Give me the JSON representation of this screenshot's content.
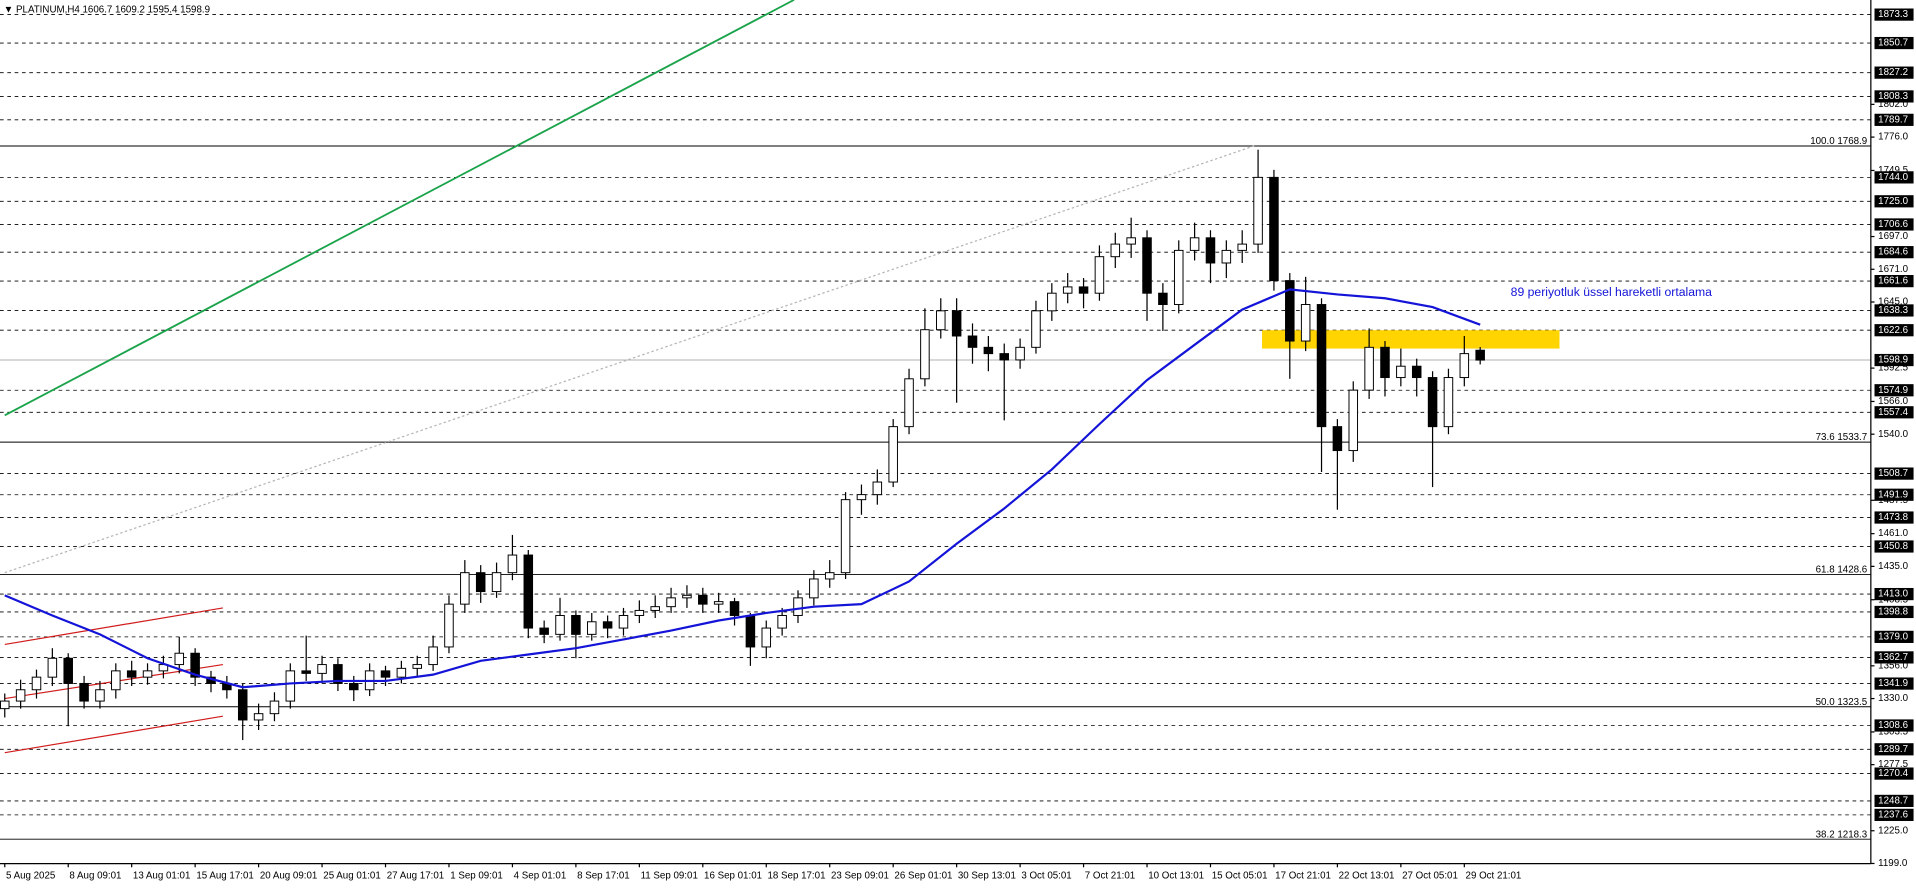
{
  "chart_data": {
    "type": "candlestick",
    "symbol": "PLATINUM,H4",
    "header": [
      1606.7,
      1609.2,
      1595.4,
      1598.9
    ],
    "xlim": [
      -1.2,
      470.5
    ],
    "ylim": [
      1198.9,
      1884.9
    ],
    "x": [
      0,
      4,
      8,
      12,
      16,
      20,
      24,
      28,
      32,
      36,
      40,
      44,
      48,
      52,
      56,
      60,
      64,
      68,
      72,
      76,
      80,
      84,
      88,
      92,
      96,
      100,
      104,
      108,
      112,
      116,
      120,
      124,
      128,
      132,
      136,
      140,
      144,
      148,
      152,
      156,
      160,
      164,
      168,
      172,
      176,
      180,
      184,
      188,
      192,
      196,
      200,
      204,
      208,
      212,
      216,
      220,
      224,
      228,
      232,
      236,
      240,
      244,
      248,
      252,
      256,
      260,
      264,
      268,
      272,
      276,
      280,
      284,
      288,
      292,
      296,
      300,
      304,
      308,
      312,
      316,
      320,
      324,
      328,
      332,
      336,
      340,
      344,
      348,
      352,
      356,
      360,
      364,
      368,
      372
    ],
    "open": [
      1322,
      1328,
      1337,
      1347,
      1362,
      1342,
      1328,
      1337,
      1352,
      1347,
      1352,
      1357,
      1366,
      1347,
      1342,
      1337,
      1313,
      1318,
      1328,
      1352,
      1350,
      1357,
      1342,
      1337,
      1352,
      1347,
      1354,
      1357,
      1371,
      1405,
      1430,
      1415,
      1430,
      1444,
      1386,
      1381,
      1396,
      1381,
      1391,
      1386,
      1396,
      1400,
      1403,
      1410,
      1412,
      1405,
      1407,
      1396,
      1371,
      1386,
      1396,
      1410,
      1425,
      1430,
      1488,
      1492,
      1502,
      1546,
      1584,
      1623,
      1638,
      1618,
      1609,
      1604,
      1599,
      1609,
      1638,
      1652,
      1657,
      1652,
      1681,
      1691,
      1696,
      1652,
      1643,
      1686,
      1696,
      1676,
      1686,
      1691,
      1744,
      1662,
      1614,
      1643,
      1546,
      1527,
      1575,
      1609,
      1585,
      1594,
      1585,
      1546,
      1585,
      1606.7
    ],
    "high": [
      1334,
      1345,
      1353,
      1370,
      1366,
      1348,
      1344,
      1358,
      1360,
      1358,
      1364,
      1379,
      1370,
      1352,
      1348,
      1342,
      1326,
      1335,
      1358,
      1380,
      1364,
      1362,
      1348,
      1358,
      1356,
      1360,
      1364,
      1380,
      1412,
      1440,
      1436,
      1438,
      1460,
      1448,
      1392,
      1410,
      1400,
      1398,
      1396,
      1402,
      1408,
      1412,
      1418,
      1420,
      1418,
      1414,
      1410,
      1398,
      1392,
      1402,
      1416,
      1432,
      1440,
      1494,
      1500,
      1512,
      1552,
      1592,
      1640,
      1648,
      1648,
      1628,
      1618,
      1612,
      1616,
      1646,
      1660,
      1668,
      1664,
      1690,
      1700,
      1712,
      1702,
      1660,
      1694,
      1708,
      1702,
      1694,
      1702,
      1766,
      1750,
      1668,
      1665,
      1648,
      1552,
      1582,
      1624,
      1614,
      1608,
      1600,
      1590,
      1592,
      1618,
      1609.2
    ],
    "low": [
      1315,
      1322,
      1330,
      1340,
      1308,
      1322,
      1322,
      1330,
      1340,
      1341,
      1346,
      1350,
      1340,
      1335,
      1330,
      1297,
      1305,
      1312,
      1322,
      1344,
      1342,
      1336,
      1328,
      1332,
      1340,
      1342,
      1348,
      1352,
      1366,
      1398,
      1406,
      1410,
      1424,
      1378,
      1374,
      1376,
      1362,
      1376,
      1378,
      1380,
      1390,
      1394,
      1398,
      1402,
      1398,
      1398,
      1388,
      1356,
      1362,
      1380,
      1390,
      1404,
      1418,
      1425,
      1476,
      1484,
      1498,
      1540,
      1578,
      1616,
      1565,
      1596,
      1590,
      1551,
      1592,
      1604,
      1630,
      1644,
      1640,
      1646,
      1672,
      1680,
      1630,
      1622,
      1636,
      1678,
      1660,
      1664,
      1676,
      1684,
      1654,
      1584,
      1606,
      1510,
      1480,
      1518,
      1568,
      1570,
      1578,
      1570,
      1498,
      1540,
      1578,
      1595.4
    ],
    "close": [
      1328,
      1337,
      1347,
      1362,
      1342,
      1328,
      1337,
      1352,
      1347,
      1352,
      1357,
      1366,
      1347,
      1342,
      1337,
      1313,
      1318,
      1328,
      1352,
      1350,
      1357,
      1342,
      1337,
      1352,
      1347,
      1354,
      1357,
      1371,
      1405,
      1430,
      1415,
      1430,
      1444,
      1386,
      1381,
      1396,
      1381,
      1391,
      1386,
      1396,
      1400,
      1403,
      1410,
      1412,
      1405,
      1407,
      1396,
      1371,
      1386,
      1396,
      1410,
      1425,
      1430,
      1488,
      1492,
      1502,
      1546,
      1584,
      1623,
      1638,
      1618,
      1609,
      1604,
      1599,
      1609,
      1638,
      1652,
      1657,
      1652,
      1681,
      1691,
      1696,
      1652,
      1643,
      1686,
      1696,
      1676,
      1686,
      1691,
      1744,
      1662,
      1614,
      1643,
      1546,
      1527,
      1575,
      1609,
      1585,
      1594,
      1585,
      1546,
      1585,
      1604,
      1598.9
    ],
    "up_color": "#ffffff",
    "down_color": "#000000",
    "xticks": [
      {
        "value": 0,
        "label": "5 Aug 2025"
      },
      {
        "value": 16,
        "label": "8 Aug 09:01"
      },
      {
        "value": 32,
        "label": "13 Aug 01:01"
      },
      {
        "value": 48,
        "label": "15 Aug 17:01"
      },
      {
        "value": 64,
        "label": "20 Aug 09:01"
      },
      {
        "value": 80,
        "label": "25 Aug 01:01"
      },
      {
        "value": 96,
        "label": "27 Aug 17:01"
      },
      {
        "value": 112,
        "label": "1 Sep 09:01"
      },
      {
        "value": 128,
        "label": "4 Sep 01:01"
      },
      {
        "value": 144,
        "label": "8 Sep 17:01"
      },
      {
        "value": 160,
        "label": "11 Sep 09:01"
      },
      {
        "value": 176,
        "label": "16 Sep 01:01"
      },
      {
        "value": 192,
        "label": "18 Sep 17:01"
      },
      {
        "value": 208,
        "label": "23 Sep 09:01"
      },
      {
        "value": 224,
        "label": "26 Sep 01:01"
      },
      {
        "value": 240,
        "label": "30 Sep 13:01"
      },
      {
        "value": 256,
        "label": "3 Oct 05:01"
      },
      {
        "value": 272,
        "label": "7 Oct 21:01"
      },
      {
        "value": 288,
        "label": "10 Oct 13:01"
      },
      {
        "value": 304,
        "label": "15 Oct 05:01"
      },
      {
        "value": 320,
        "label": "17 Oct 21:01"
      },
      {
        "value": 336,
        "label": "22 Oct 13:01"
      },
      {
        "value": 352,
        "label": "27 Oct 05:01"
      },
      {
        "value": 368,
        "label": "29 Oct 21:01"
      }
    ],
    "yticks": [
      {
        "value": 1802,
        "label": "1802.0"
      },
      {
        "value": 1776,
        "label": "1776.0"
      },
      1749.5,
      {
        "value": 1697,
        "label": "1697.0"
      },
      {
        "value": 1671,
        "label": "1671.0"
      },
      {
        "value": 1645,
        "label": "1645.0"
      },
      1592.5,
      {
        "value": 1566,
        "label": "1566.0"
      },
      {
        "value": 1540,
        "label": "1540.0"
      },
      1487.5,
      {
        "value": 1461,
        "label": "1461.0"
      },
      {
        "value": 1435,
        "label": "1435.0"
      },
      1408.5,
      {
        "value": 1356,
        "label": "1356.0"
      },
      {
        "value": 1330,
        "label": "1330.0"
      },
      1303.5,
      1277.5,
      {
        "value": 1225,
        "label": "1225.0"
      },
      {
        "value": 1199,
        "label": "1199.0"
      }
    ],
    "levels": [
      1873.3,
      1850.7,
      1827.2,
      1808.3,
      1789.7,
      {
        "value": 1744,
        "label": "1744.0"
      },
      {
        "value": 1725,
        "label": "1725.0"
      },
      1706.6,
      1684.6,
      1661.6,
      1638.3,
      1622.6,
      1598.9,
      1574.9,
      1557.4,
      1508.7,
      1491.9,
      1473.8,
      1450.8,
      {
        "value": 1413,
        "label": "1413.0"
      },
      1398.8,
      {
        "value": 1379,
        "label": "1379.0"
      },
      1362.7,
      1341.9,
      1308.6,
      1289.7,
      1270.4,
      1248.7,
      1237.6
    ],
    "price_line": 1598.9,
    "fib": [
      {
        "level": "100.0",
        "value": 1768.9
      },
      {
        "level": "73.6",
        "value": 1533.7
      },
      {
        "level": "61.8",
        "value": 1428.6
      },
      {
        "level": "50.0",
        "value": 1323.5
      },
      {
        "level": "38.2",
        "value": 1218.3
      }
    ],
    "ma": {
      "name": "89 periyotluk üssel hareketli ortalama",
      "color": "#1414d8",
      "x": [
        0,
        12,
        24,
        36,
        48,
        60,
        72,
        84,
        96,
        108,
        120,
        132,
        144,
        156,
        168,
        180,
        192,
        204,
        216,
        228,
        240,
        252,
        264,
        276,
        288,
        300,
        312,
        324,
        336,
        348,
        360,
        372
      ],
      "values": [
        1412,
        1396,
        1381,
        1362,
        1349,
        1339,
        1342,
        1344,
        1344,
        1349,
        1360,
        1365,
        1370,
        1377,
        1384,
        1392,
        1398,
        1403,
        1405,
        1423,
        1453,
        1481,
        1512,
        1548,
        1583,
        1611,
        1639,
        1655,
        1651,
        1648,
        1641,
        1627
      ]
    },
    "trendlines": [
      {
        "color": "#1aa34a",
        "x": [
          0,
          199
        ],
        "values": [
          1555,
          1885
        ]
      },
      {
        "color": "#d01c1c",
        "x": [
          0,
          55
        ],
        "values": [
          1373,
          1402
        ]
      },
      {
        "color": "#d01c1c",
        "x": [
          0,
          55
        ],
        "values": [
          1330,
          1357
        ]
      },
      {
        "color": "#d01c1c",
        "x": [
          0,
          55
        ],
        "values": [
          1287,
          1316
        ]
      },
      {
        "color": "#b4b4b4",
        "x": [
          0,
          315
        ],
        "values": [
          1430,
          1769
        ]
      }
    ],
    "zone": {
      "color": "#ffd400",
      "x": [
        317,
        392
      ],
      "values": [
        1608,
        1622.6
      ]
    }
  }
}
